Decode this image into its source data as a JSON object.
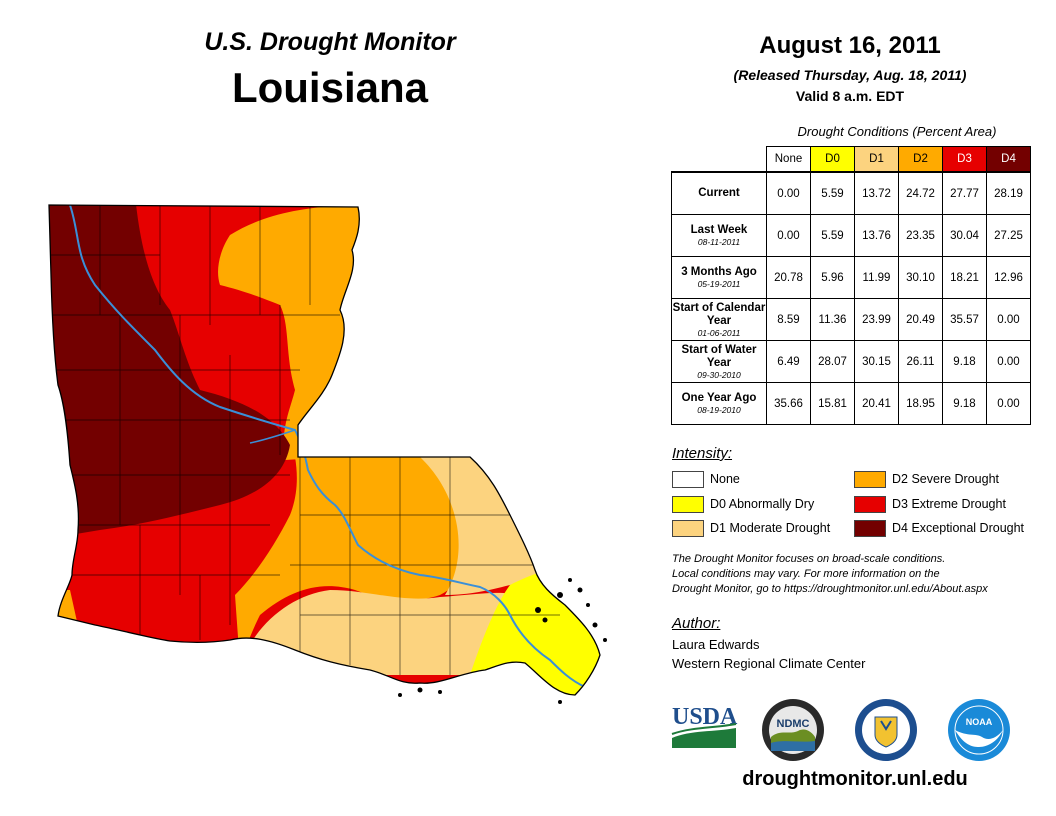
{
  "header": {
    "subtitle": "U.S. Drought Monitor",
    "state": "Louisiana",
    "date": "August 16, 2011",
    "released": "(Released Thursday, Aug. 18, 2011)",
    "valid": "Valid 8 a.m. EDT"
  },
  "table": {
    "caption": "Drought Conditions (Percent Area)",
    "columns": [
      "None",
      "D0",
      "D1",
      "D2",
      "D3",
      "D4"
    ],
    "column_colors": [
      "#ffffff",
      "#ffff00",
      "#fcd37f",
      "#ffaa00",
      "#e60000",
      "#730000"
    ],
    "rows": [
      {
        "label": "Current",
        "date": "",
        "values": [
          "0.00",
          "5.59",
          "13.72",
          "24.72",
          "27.77",
          "28.19"
        ]
      },
      {
        "label": "Last Week",
        "date": "08-11-2011",
        "values": [
          "0.00",
          "5.59",
          "13.76",
          "23.35",
          "30.04",
          "27.25"
        ]
      },
      {
        "label": "3 Months Ago",
        "date": "05-19-2011",
        "values": [
          "20.78",
          "5.96",
          "11.99",
          "30.10",
          "18.21",
          "12.96"
        ]
      },
      {
        "label": "Start of Calendar Year",
        "date": "01-06-2011",
        "values": [
          "8.59",
          "11.36",
          "23.99",
          "20.49",
          "35.57",
          "0.00"
        ]
      },
      {
        "label": "Start of Water Year",
        "date": "09-30-2010",
        "values": [
          "6.49",
          "28.07",
          "30.15",
          "26.11",
          "9.18",
          "0.00"
        ]
      },
      {
        "label": "One Year Ago",
        "date": "08-19-2010",
        "values": [
          "35.66",
          "15.81",
          "20.41",
          "18.95",
          "9.18",
          "0.00"
        ]
      }
    ]
  },
  "legend": {
    "title": "Intensity:",
    "items": [
      {
        "label": "None",
        "color": "#ffffff"
      },
      {
        "label": "D0 Abnormally Dry",
        "color": "#ffff00"
      },
      {
        "label": "D1 Moderate Drought",
        "color": "#fcd37f"
      },
      {
        "label": "D2 Severe Drought",
        "color": "#ffaa00"
      },
      {
        "label": "D3 Extreme Drought",
        "color": "#e60000"
      },
      {
        "label": "D4 Exceptional Drought",
        "color": "#730000"
      }
    ]
  },
  "disclaimer": {
    "line1": "The Drought Monitor focuses on broad-scale conditions.",
    "line2": "Local conditions may vary. For more information on the",
    "line3": "Drought Monitor, go to https://droughtmonitor.unl.edu/About.aspx"
  },
  "author": {
    "title": "Author:",
    "name": "Laura Edwards",
    "org": "Western Regional Climate Center"
  },
  "logos": {
    "usda": "USDA",
    "ndmc": "NDMC",
    "noaa": "NOAA"
  },
  "url": "droughtmonitor.unl.edu",
  "map_colors": {
    "d0": "#ffff00",
    "d1": "#fcd37f",
    "d2": "#ffaa00",
    "d3": "#e60000",
    "d4": "#730000",
    "river": "#3a8fd8",
    "county": "#000000"
  }
}
